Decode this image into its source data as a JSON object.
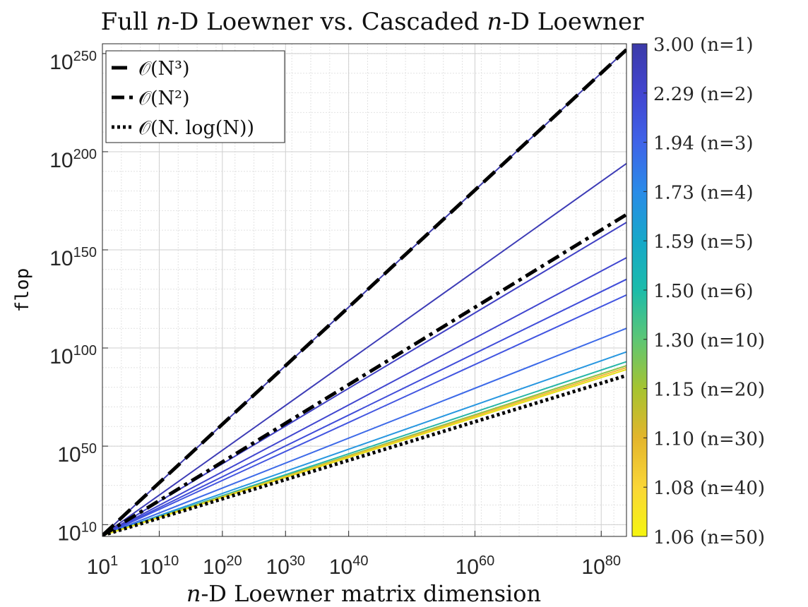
{
  "chart_data": {
    "type": "line",
    "title": "Full n-D Loewner vs. Cascaded n-D Loewner",
    "xlabel": "n-D Loewner matrix dimension",
    "ylabel": "flop",
    "xscale": "log",
    "yscale": "log",
    "xlim_exponent": [
      1,
      84
    ],
    "ylim_exponent": [
      4,
      255
    ],
    "grid": true,
    "x_tick_labels": [
      {
        "base": "10",
        "exp": "1",
        "value_exponent": 1
      },
      {
        "base": "10",
        "exp": "10",
        "value_exponent": 10
      },
      {
        "base": "10",
        "exp": "20",
        "value_exponent": 20
      },
      {
        "base": "10",
        "exp": "30",
        "value_exponent": 30
      },
      {
        "base": "10",
        "exp": "40",
        "value_exponent": 40
      },
      {
        "base": "10",
        "exp": "60",
        "value_exponent": 60
      },
      {
        "base": "10",
        "exp": "80",
        "value_exponent": 80
      }
    ],
    "y_tick_labels": [
      {
        "base": "10",
        "exp": "10",
        "value_exponent": 10
      },
      {
        "base": "10",
        "exp": "50",
        "value_exponent": 50
      },
      {
        "base": "10",
        "exp": "100",
        "value_exponent": 100
      },
      {
        "base": "10",
        "exp": "150",
        "value_exponent": 150
      },
      {
        "base": "10",
        "exp": "200",
        "value_exponent": 200
      },
      {
        "base": "10",
        "exp": "250",
        "value_exponent": 250
      }
    ],
    "legend_position": "top-left",
    "legend": [
      {
        "label": "𝒪(N³)",
        "style": "dashed"
      },
      {
        "label": "𝒪(N²)",
        "style": "dashdot"
      },
      {
        "label": "𝒪(N. log(N))",
        "style": "dotted"
      }
    ],
    "reference_series": [
      {
        "label": "𝒪(N³)",
        "style": "dashed",
        "slope": 3,
        "y_at_x84": 252
      },
      {
        "label": "𝒪(N²)",
        "style": "dashdot",
        "slope": 2,
        "y_at_x84": 168
      },
      {
        "label": "𝒪(N. log(N))",
        "style": "dotted",
        "slope": 1,
        "y_at_x84": 86
      }
    ],
    "series": [
      {
        "slope": 3.0,
        "y_at_x84": 252,
        "color": "#3b3aa8"
      },
      {
        "slope": 2.29,
        "y_at_x84": 194,
        "color": "#3d3cb6"
      },
      {
        "slope": 1.94,
        "y_at_x84": 164,
        "color": "#3f40c4"
      },
      {
        "slope": 1.73,
        "y_at_x84": 146,
        "color": "#4046cf"
      },
      {
        "slope": 1.59,
        "y_at_x84": 135,
        "color": "#404dd9"
      },
      {
        "slope": 1.5,
        "y_at_x84": 127,
        "color": "#4255e0"
      },
      {
        "slope": 1.3,
        "y_at_x84": 110,
        "color": "#3d6ae8"
      },
      {
        "slope": 1.15,
        "y_at_x84": 98,
        "color": "#2797e0"
      },
      {
        "slope": 1.1,
        "y_at_x84": 93,
        "color": "#26b5a8"
      },
      {
        "slope": 1.08,
        "y_at_x84": 91,
        "color": "#8ec548"
      },
      {
        "slope": 1.07,
        "y_at_x84": 90,
        "color": "#f4b83a"
      },
      {
        "slope": 1.06,
        "y_at_x84": 89,
        "color": "#e7e018"
      }
    ],
    "colorbar": {
      "ticks": [
        {
          "label": "3.00 (n=1)"
        },
        {
          "label": "2.29 (n=2)"
        },
        {
          "label": "1.94 (n=3)"
        },
        {
          "label": "1.73 (n=4)"
        },
        {
          "label": "1.59 (n=5)"
        },
        {
          "label": "1.50 (n=6)"
        },
        {
          "label": "1.30 (n=10)"
        },
        {
          "label": "1.15 (n=20)"
        },
        {
          "label": "1.10 (n=30)"
        },
        {
          "label": "1.08 (n=40)"
        },
        {
          "label": "1.06 (n=50)"
        }
      ],
      "colors": [
        "#3b3aa8",
        "#4245d0",
        "#3f63e8",
        "#2a8be8",
        "#16a8c9",
        "#1cbcaa",
        "#5dc675",
        "#a6c430",
        "#e3b52c",
        "#fad637",
        "#f5f50f"
      ]
    }
  }
}
